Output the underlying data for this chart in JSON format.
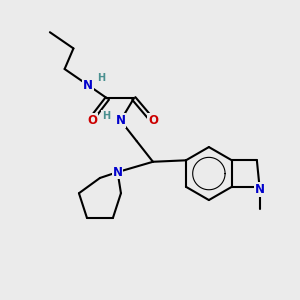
{
  "bg_color": "#ebebeb",
  "atom_colors": {
    "C": "#000000",
    "N": "#0000cc",
    "O": "#cc0000",
    "H": "#4a9090"
  },
  "bond_color": "#000000",
  "bond_width": 1.5,
  "font_size_atom": 8.5,
  "font_size_h": 7.0
}
